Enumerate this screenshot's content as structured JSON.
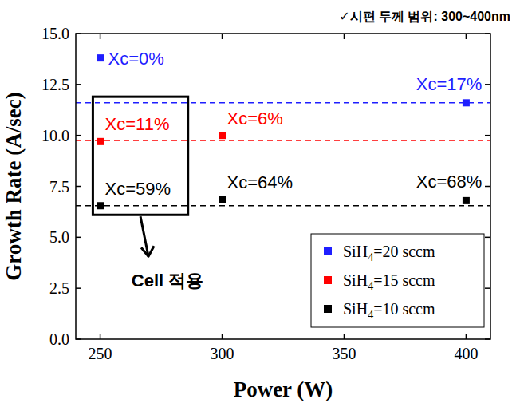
{
  "chart_data": {
    "type": "scatter",
    "subtitle": "✓시편 두께 범위: 300~400nm",
    "x_label": "Power (W)",
    "y_label": "Growth Rate (A/sec)",
    "xlim": [
      240,
      410
    ],
    "xticks": [
      250,
      300,
      350,
      400
    ],
    "ylim": [
      0,
      15
    ],
    "yticks": [
      {
        "value": 0,
        "label": "0.0"
      },
      {
        "value": 2.5,
        "label": "2.5"
      },
      {
        "value": 5,
        "label": "5.0"
      },
      {
        "value": 7.5,
        "label": "7.5"
      },
      {
        "value": 10,
        "label": "10.0"
      },
      {
        "value": 12.5,
        "label": "12.5"
      },
      {
        "value": 15,
        "label": "15.0"
      }
    ],
    "legend": "lower right",
    "marker": "square",
    "series": [
      {
        "name": "SiH4=20 sccm",
        "color": "#1f1fff",
        "x": [
          250,
          400
        ],
        "values": [
          13.8,
          11.6
        ],
        "point_labels": [
          "Xc=0%",
          "Xc=17%"
        ],
        "hline": 11.6,
        "line_style": "dashed"
      },
      {
        "name": "SiH4=15 sccm",
        "color": "#ff0000",
        "x": [
          250,
          300
        ],
        "values": [
          9.7,
          10.0
        ],
        "point_labels": [
          "Xc=11%",
          "Xc=6%"
        ],
        "hline": 9.75,
        "line_style": "dashed"
      },
      {
        "name": "SiH4=10 sccm",
        "color": "#000000",
        "x": [
          250,
          300,
          400
        ],
        "values": [
          6.55,
          6.85,
          6.8
        ],
        "point_labels": [
          "Xc=59%",
          "Xc=64%",
          "Xc=68%"
        ],
        "hline": 6.55,
        "line_style": "dashed"
      }
    ],
    "annotations": [
      {
        "text": "Cell 적용",
        "box_x": [
          247,
          286
        ],
        "box_y": [
          6.1,
          11.9
        ]
      }
    ]
  }
}
